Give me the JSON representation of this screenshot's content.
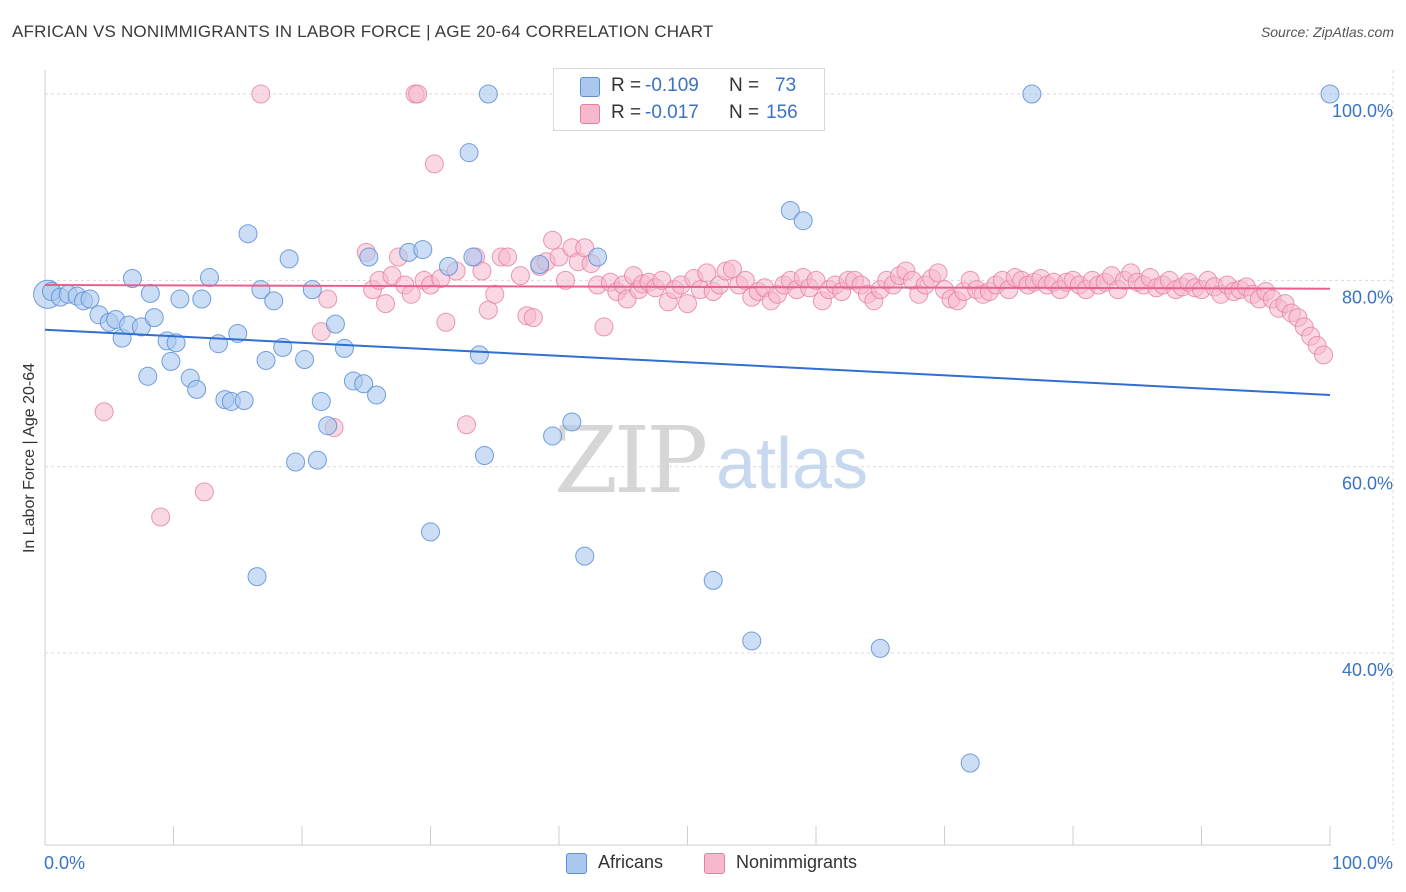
{
  "title": "AFRICAN VS NONIMMIGRANTS IN LABOR FORCE | AGE 20-64 CORRELATION CHART",
  "source": "Source: ZipAtlas.com",
  "watermark": {
    "zip": "ZIP",
    "atlas": "atlas"
  },
  "legend": {
    "r_label": "R =",
    "n_label": "N =",
    "africans": {
      "r": "-0.109",
      "n": "73"
    },
    "nonimmigrants": {
      "r": "-0.017",
      "n": "156"
    }
  },
  "bottom_legend": {
    "africans": "Africans",
    "nonimmigrants": "Nonimmigrants"
  },
  "colors": {
    "blue_fill": "#aac8ee",
    "blue_stroke": "#5b8fd6",
    "blue_line": "#2f6fd1",
    "pink_fill": "#f6b8cc",
    "pink_stroke": "#e67fa2",
    "pink_line": "#e8608e",
    "axis_text": "#3a72c4",
    "grid": "#d8d8d8"
  },
  "chart_data": {
    "type": "scatter",
    "title": "AFRICAN VS NONIMMIGRANTS IN LABOR FORCE | AGE 20-64 CORRELATION CHART",
    "xlabel": "",
    "ylabel": "In Labor Force | Age 20-64",
    "xlim": [
      0,
      100
    ],
    "ylim": [
      19.4,
      101.5
    ],
    "x_tick_labels": [
      "0.0%",
      "100.0%"
    ],
    "y_ticks": [
      40,
      60,
      80,
      100
    ],
    "y_tick_labels": [
      "40.0%",
      "60.0%",
      "80.0%",
      "100.0%"
    ],
    "grid": true,
    "series": [
      {
        "name": "Africans",
        "r": -0.109,
        "n": 73,
        "trend": {
          "x": [
            0,
            100
          ],
          "y": [
            74.7,
            67.7
          ]
        },
        "points": [
          [
            0.2,
            78.5,
            2
          ],
          [
            0.5,
            78.8,
            1
          ],
          [
            1.2,
            78.2,
            1
          ],
          [
            1.8,
            78.5,
            1
          ],
          [
            2.5,
            78.3,
            1
          ],
          [
            3.0,
            77.8,
            1
          ],
          [
            3.5,
            78.0,
            1
          ],
          [
            4.2,
            76.3,
            1
          ],
          [
            5.0,
            75.5,
            1
          ],
          [
            5.5,
            75.8,
            1
          ],
          [
            6.0,
            73.8,
            1
          ],
          [
            6.5,
            75.2,
            1
          ],
          [
            6.8,
            80.2,
            1
          ],
          [
            7.5,
            75.0,
            1
          ],
          [
            8.0,
            69.7,
            1
          ],
          [
            8.2,
            78.6,
            1
          ],
          [
            8.5,
            76.0,
            1
          ],
          [
            9.5,
            73.5,
            1
          ],
          [
            9.8,
            71.3,
            1
          ],
          [
            10.2,
            73.3,
            1
          ],
          [
            10.5,
            78.0,
            1
          ],
          [
            11.3,
            69.5,
            1
          ],
          [
            11.8,
            68.3,
            1
          ],
          [
            12.2,
            78.0,
            1
          ],
          [
            12.8,
            80.3,
            1
          ],
          [
            13.5,
            73.2,
            1
          ],
          [
            14.0,
            67.2,
            1
          ],
          [
            14.5,
            67.0,
            1
          ],
          [
            15.0,
            74.3,
            1
          ],
          [
            15.5,
            67.1,
            1
          ],
          [
            15.8,
            85.0,
            1
          ],
          [
            16.5,
            48.2,
            1
          ],
          [
            16.8,
            79.0,
            1
          ],
          [
            17.2,
            71.4,
            1
          ],
          [
            17.8,
            77.8,
            1
          ],
          [
            18.5,
            72.8,
            1
          ],
          [
            19.0,
            82.3,
            1
          ],
          [
            19.5,
            60.5,
            1
          ],
          [
            20.2,
            71.5,
            1
          ],
          [
            20.8,
            79.0,
            1
          ],
          [
            21.2,
            60.7,
            1
          ],
          [
            21.5,
            67.0,
            1
          ],
          [
            22.0,
            64.4,
            1
          ],
          [
            22.6,
            75.3,
            1
          ],
          [
            23.3,
            72.7,
            1
          ],
          [
            24.0,
            69.2,
            1
          ],
          [
            24.8,
            68.9,
            1
          ],
          [
            25.2,
            82.5,
            1
          ],
          [
            25.8,
            67.7,
            1
          ],
          [
            28.3,
            83.0,
            1
          ],
          [
            29.4,
            83.3,
            1
          ],
          [
            30.0,
            53.0,
            1
          ],
          [
            31.4,
            81.5,
            1
          ],
          [
            33.0,
            93.7,
            1
          ],
          [
            33.3,
            82.5,
            1
          ],
          [
            33.8,
            72.0,
            1
          ],
          [
            34.2,
            61.2,
            1
          ],
          [
            34.5,
            100.0,
            1
          ],
          [
            38.5,
            81.7,
            1
          ],
          [
            39.5,
            63.3,
            1
          ],
          [
            41.0,
            64.8,
            1
          ],
          [
            42.0,
            50.4,
            1
          ],
          [
            43.0,
            82.5,
            1
          ],
          [
            52.0,
            47.8,
            1
          ],
          [
            55.0,
            41.3,
            1
          ],
          [
            58.0,
            87.5,
            1
          ],
          [
            59.0,
            86.4,
            1
          ],
          [
            65.0,
            40.5,
            1
          ],
          [
            72.0,
            28.2,
            1
          ],
          [
            76.8,
            100.0,
            1
          ],
          [
            100.0,
            100.0,
            1
          ]
        ]
      },
      {
        "name": "Nonimmigrants",
        "r": -0.017,
        "n": 156,
        "trend": {
          "x": [
            0,
            100
          ],
          "y": [
            79.5,
            79.1
          ]
        },
        "points": [
          [
            4.6,
            65.9
          ],
          [
            9.0,
            54.6
          ],
          [
            12.4,
            57.3
          ],
          [
            16.8,
            100.0
          ],
          [
            21.5,
            74.5
          ],
          [
            22.0,
            78.0
          ],
          [
            22.5,
            64.2
          ],
          [
            25.0,
            83.0
          ],
          [
            25.5,
            79.0
          ],
          [
            26.0,
            80.0
          ],
          [
            26.5,
            77.5
          ],
          [
            27.0,
            80.5
          ],
          [
            27.5,
            82.5
          ],
          [
            28.0,
            79.5
          ],
          [
            28.5,
            78.5
          ],
          [
            28.8,
            100.0
          ],
          [
            29.0,
            100.0
          ],
          [
            29.5,
            80.0
          ],
          [
            30.0,
            79.5
          ],
          [
            30.3,
            92.5
          ],
          [
            30.8,
            80.2
          ],
          [
            31.2,
            75.5
          ],
          [
            32.0,
            81.0
          ],
          [
            32.8,
            64.5
          ],
          [
            33.5,
            82.5
          ],
          [
            34.0,
            81.0
          ],
          [
            34.5,
            76.8
          ],
          [
            35.0,
            78.5
          ],
          [
            35.5,
            82.5
          ],
          [
            36.0,
            82.5
          ],
          [
            37.0,
            80.5
          ],
          [
            37.5,
            76.2
          ],
          [
            38.0,
            76.0
          ],
          [
            38.5,
            81.5
          ],
          [
            39.0,
            82.0
          ],
          [
            39.5,
            84.3
          ],
          [
            40.0,
            82.5
          ],
          [
            40.5,
            80.0
          ],
          [
            41.0,
            83.5
          ],
          [
            41.5,
            82.0
          ],
          [
            42.0,
            83.5
          ],
          [
            42.5,
            81.8
          ],
          [
            43.0,
            79.5
          ],
          [
            43.5,
            75.0
          ],
          [
            44.0,
            79.8
          ],
          [
            44.5,
            78.8
          ],
          [
            45.0,
            79.5
          ],
          [
            45.3,
            78.0
          ],
          [
            45.8,
            80.5
          ],
          [
            46.2,
            79.0
          ],
          [
            46.5,
            79.6
          ],
          [
            47.0,
            79.8
          ],
          [
            47.5,
            79.2
          ],
          [
            48.0,
            80.0
          ],
          [
            48.5,
            77.7
          ],
          [
            49.0,
            79.0
          ],
          [
            49.5,
            79.5
          ],
          [
            50.0,
            77.5
          ],
          [
            50.5,
            80.2
          ],
          [
            51.0,
            79.0
          ],
          [
            51.5,
            80.8
          ],
          [
            52.0,
            78.8
          ],
          [
            52.5,
            79.5
          ],
          [
            53.0,
            81.0
          ],
          [
            53.5,
            81.2
          ],
          [
            54.0,
            79.5
          ],
          [
            54.5,
            80.0
          ],
          [
            55.0,
            78.2
          ],
          [
            55.5,
            78.8
          ],
          [
            56.0,
            79.2
          ],
          [
            56.5,
            77.8
          ],
          [
            57.0,
            78.5
          ],
          [
            57.5,
            79.5
          ],
          [
            58.0,
            80.0
          ],
          [
            58.5,
            79.0
          ],
          [
            59.0,
            80.3
          ],
          [
            59.5,
            79.2
          ],
          [
            60.0,
            80.0
          ],
          [
            60.5,
            77.8
          ],
          [
            61.0,
            79.0
          ],
          [
            61.5,
            79.5
          ],
          [
            62.0,
            78.8
          ],
          [
            62.5,
            80.0
          ],
          [
            63.0,
            80.0
          ],
          [
            63.5,
            79.5
          ],
          [
            64.0,
            78.5
          ],
          [
            64.5,
            77.8
          ],
          [
            65.0,
            79.0
          ],
          [
            65.5,
            80.0
          ],
          [
            66.0,
            79.5
          ],
          [
            66.5,
            80.5
          ],
          [
            67.0,
            81.0
          ],
          [
            67.5,
            80.0
          ],
          [
            68.0,
            78.5
          ],
          [
            68.5,
            79.5
          ],
          [
            69.0,
            80.2
          ],
          [
            69.5,
            80.8
          ],
          [
            70.0,
            79.0
          ],
          [
            70.5,
            78.0
          ],
          [
            71.0,
            77.8
          ],
          [
            71.5,
            78.8
          ],
          [
            72.0,
            80.0
          ],
          [
            72.5,
            79.0
          ],
          [
            73.0,
            78.5
          ],
          [
            73.5,
            78.8
          ],
          [
            74.0,
            79.5
          ],
          [
            74.5,
            80.0
          ],
          [
            75.0,
            79.0
          ],
          [
            75.5,
            80.3
          ],
          [
            76.0,
            80.0
          ],
          [
            76.5,
            79.5
          ],
          [
            77.0,
            79.8
          ],
          [
            77.5,
            80.2
          ],
          [
            78.0,
            79.5
          ],
          [
            78.5,
            79.8
          ],
          [
            79.0,
            79.0
          ],
          [
            79.5,
            79.8
          ],
          [
            80.0,
            80.0
          ],
          [
            80.5,
            79.5
          ],
          [
            81.0,
            79.0
          ],
          [
            81.5,
            80.0
          ],
          [
            82.0,
            79.5
          ],
          [
            82.5,
            79.8
          ],
          [
            83.0,
            80.5
          ],
          [
            83.5,
            79.0
          ],
          [
            84.0,
            80.0
          ],
          [
            84.5,
            80.8
          ],
          [
            85.0,
            79.8
          ],
          [
            85.5,
            79.5
          ],
          [
            86.0,
            80.3
          ],
          [
            86.5,
            79.2
          ],
          [
            87.0,
            79.5
          ],
          [
            87.5,
            80.0
          ],
          [
            88.0,
            79.0
          ],
          [
            88.5,
            79.3
          ],
          [
            89.0,
            79.8
          ],
          [
            89.5,
            79.2
          ],
          [
            90.0,
            79.0
          ],
          [
            90.5,
            80.0
          ],
          [
            91.0,
            79.3
          ],
          [
            91.5,
            78.5
          ],
          [
            92.0,
            79.5
          ],
          [
            92.5,
            78.8
          ],
          [
            93.0,
            79.0
          ],
          [
            93.5,
            79.3
          ],
          [
            94.0,
            78.5
          ],
          [
            94.5,
            78.0
          ],
          [
            95.0,
            78.8
          ],
          [
            95.5,
            78.0
          ],
          [
            96.0,
            77.0
          ],
          [
            96.5,
            77.5
          ],
          [
            97.0,
            76.5
          ],
          [
            97.5,
            76.0
          ],
          [
            98.0,
            75.0
          ],
          [
            98.5,
            74.0
          ],
          [
            99.0,
            73.0
          ],
          [
            99.5,
            72.0
          ]
        ]
      }
    ]
  }
}
